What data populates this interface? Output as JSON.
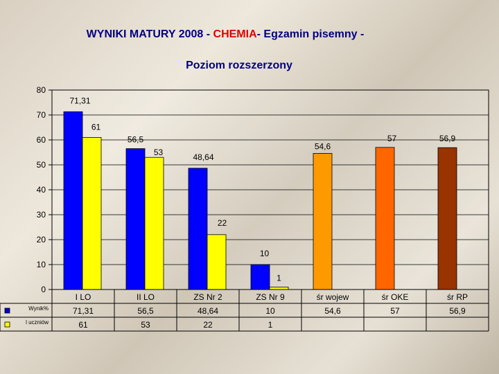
{
  "chart_data": {
    "type": "bar",
    "title_prefix": "WYNIKI MATURY 2008 - ",
    "title_highlight": "CHEMIA",
    "title_suffix": "- Egzamin pisemny -",
    "subtitle": "Poziom  rozszerzony",
    "ylim": [
      0,
      80
    ],
    "yticks": [
      0,
      10,
      20,
      30,
      40,
      50,
      60,
      70,
      80
    ],
    "categories": [
      "I LO",
      "II LO",
      "ZS Nr 2",
      "ZS Nr 9",
      "śr  wojew",
      "śr  OKE",
      "śr  RP"
    ],
    "series": [
      {
        "name": "Wynik%",
        "values": [
          71.31,
          56.5,
          48.64,
          10,
          54.6,
          57,
          56.9
        ],
        "labels": [
          "71,31",
          "56,5",
          "48,64",
          "10",
          "54,6",
          "57",
          "56,9"
        ]
      },
      {
        "name": "l uczniów",
        "values": [
          61,
          53,
          22,
          1,
          null,
          null,
          null
        ],
        "labels": [
          "61",
          "53",
          "22",
          "1",
          "",
          "",
          ""
        ]
      }
    ],
    "bar_colors": [
      [
        "#0000ff",
        "#0000ff",
        "#0000ff",
        "#0000ff",
        "#ff9900",
        "#ff6600",
        "#993300"
      ],
      [
        "#ffff00",
        "#ffff00",
        "#ffff00",
        "#ffff00",
        "#ffff00",
        "#ffff00",
        "#ffff00"
      ]
    ],
    "legend_colors": [
      "#0000cc",
      "#ffff00"
    ],
    "grid": true,
    "legend": "data-table"
  }
}
